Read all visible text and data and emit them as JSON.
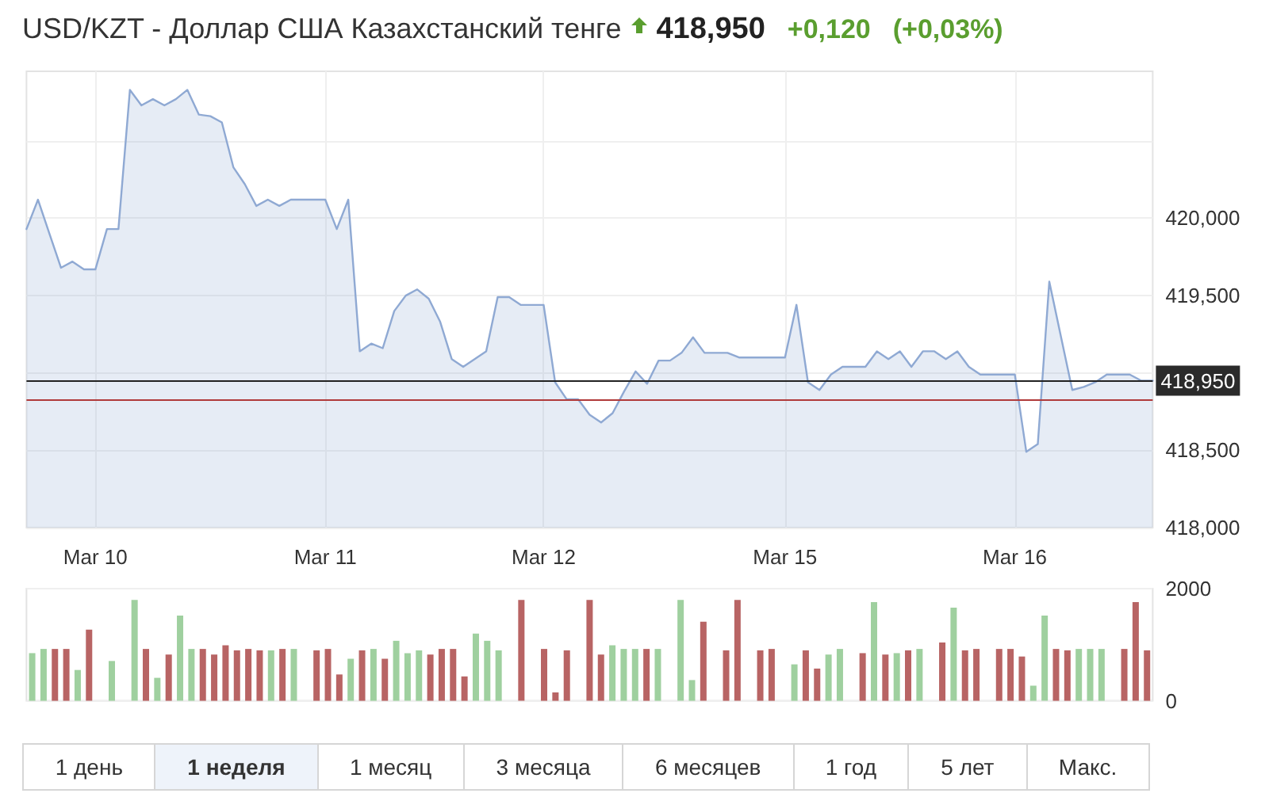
{
  "chart_data": [
    {
      "type": "area",
      "title": "USD/KZT - Доллар США Казахстанский тенге",
      "annotations": [
        "418,950",
        "+0,120",
        "(+0,03%)"
      ],
      "categories": [
        null,
        null,
        null,
        null,
        null,
        null,
        "Mar 10",
        null,
        null,
        null,
        null,
        null,
        null,
        null,
        null,
        null,
        null,
        null,
        null,
        null,
        null,
        null,
        null,
        null,
        null,
        null,
        "Mar 11",
        null,
        null,
        null,
        null,
        null,
        null,
        null,
        null,
        null,
        null,
        null,
        null,
        null,
        null,
        null,
        null,
        null,
        null,
        "Mar 12",
        null,
        null,
        null,
        null,
        null,
        null,
        null,
        null,
        null,
        null,
        null,
        null,
        null,
        null,
        null,
        null,
        null,
        null,
        null,
        null,
        "Mar 15",
        null,
        null,
        null,
        null,
        null,
        null,
        null,
        null,
        null,
        null,
        null,
        null,
        null,
        null,
        null,
        null,
        null,
        null,
        null,
        "Mar 16",
        null,
        null,
        null,
        null,
        null,
        null,
        null,
        null,
        null,
        null,
        null,
        null
      ],
      "series": [
        {
          "color": "#8fa9d3",
          "values": [
            419.93,
            420.12,
            419.9,
            419.68,
            419.72,
            419.67,
            419.67,
            419.93,
            419.93,
            420.83,
            420.73,
            420.77,
            420.73,
            420.77,
            420.83,
            420.67,
            420.66,
            420.62,
            420.33,
            420.22,
            420.08,
            420.12,
            420.08,
            420.12,
            420.12,
            420.12,
            420.12,
            419.93,
            420.12,
            419.14,
            419.19,
            419.16,
            419.4,
            419.5,
            419.54,
            419.48,
            419.33,
            419.09,
            419.04,
            419.09,
            419.14,
            419.49,
            419.49,
            419.44,
            419.44,
            419.44,
            418.94,
            418.83,
            418.83,
            418.73,
            418.68,
            418.74,
            418.88,
            419.01,
            418.93,
            419.08,
            419.08,
            419.13,
            419.23,
            419.13,
            419.13,
            419.13,
            419.1,
            419.1,
            419.1,
            419.1,
            419.1,
            419.44,
            418.94,
            418.89,
            418.99,
            419.04,
            419.04,
            419.04,
            419.14,
            419.09,
            419.14,
            419.04,
            419.14,
            419.14,
            419.09,
            419.14,
            419.04,
            418.99,
            418.99,
            418.99,
            418.99,
            418.49,
            418.54,
            419.59,
            419.24,
            418.89,
            418.91,
            418.94,
            418.99,
            418.99,
            418.99,
            418.95,
            418.95
          ]
        }
      ],
      "ylim": [
        418,
        420.95
      ],
      "yticks": [
        {
          "value": 418,
          "label": "418,000"
        },
        {
          "value": 418.5,
          "label": "418,500"
        },
        {
          "value": 419,
          "label": null
        },
        {
          "value": 419.5,
          "label": "419,500"
        },
        {
          "value": 420,
          "label": "420,000"
        },
        {
          "value": 420.5,
          "label": null
        }
      ],
      "ref_lines": [
        {
          "axis": "y",
          "value": 418.95,
          "label": "418,950",
          "color": "#222222"
        },
        {
          "axis": "y",
          "value": 418.83,
          "color": "#b03a3a"
        }
      ],
      "grid": true
    },
    {
      "type": "bar",
      "annotations": [
        "1 день",
        "1 неделя",
        "1 месяц",
        "3 месяца",
        "6 месяцев",
        "1 год",
        "5 лет",
        "Макс."
      ],
      "categories": [
        null,
        null,
        null,
        null,
        null,
        null,
        null,
        null,
        null,
        null,
        null,
        null,
        null,
        null,
        null,
        null,
        null,
        null,
        null,
        null,
        null,
        null,
        null,
        null,
        null,
        null,
        null,
        null,
        null,
        null,
        null,
        null,
        null,
        null,
        null,
        null,
        null,
        null,
        null,
        null,
        null,
        null,
        null,
        null,
        null,
        null,
        null,
        null,
        null,
        null,
        null,
        null,
        null,
        null,
        null,
        null,
        null,
        null,
        null,
        null,
        null,
        null,
        null,
        null,
        null,
        null,
        null,
        null,
        null,
        null,
        null,
        null,
        null,
        null,
        null,
        null,
        null,
        null,
        null,
        null,
        null,
        null,
        null,
        null,
        null,
        null,
        null,
        null,
        null,
        null,
        null,
        null,
        null,
        null,
        null,
        null,
        null,
        null,
        null
      ],
      "values": [
        850,
        925,
        925,
        925,
        550,
        1270,
        null,
        710,
        null,
        1800,
        925,
        410,
        825,
        1520,
        925,
        925,
        825,
        990,
        900,
        925,
        900,
        900,
        925,
        925,
        null,
        900,
        925,
        470,
        750,
        900,
        925,
        750,
        1070,
        850,
        900,
        825,
        925,
        925,
        435,
        1200,
        1070,
        900,
        null,
        1800,
        null,
        925,
        150,
        900,
        null,
        1800,
        825,
        990,
        925,
        925,
        925,
        925,
        null,
        1800,
        370,
        1410,
        null,
        900,
        1800,
        null,
        900,
        925,
        null,
        650,
        900,
        575,
        825,
        925,
        null,
        850,
        1760,
        825,
        850,
        900,
        925,
        null,
        1040,
        1660,
        900,
        925,
        null,
        925,
        925,
        790,
        270,
        1520,
        925,
        900,
        925,
        925,
        925,
        null,
        925,
        1760,
        900
      ],
      "colors": [
        "#9fd09f",
        "#9fd09f",
        "#b86464",
        "#b86464",
        "#9fd09f",
        "#b86464",
        null,
        "#9fd09f",
        null,
        "#9fd09f",
        "#b86464",
        "#9fd09f",
        "#b86464",
        "#9fd09f",
        "#9fd09f",
        "#b86464",
        "#b86464",
        "#b86464",
        "#b86464",
        "#b86464",
        "#b86464",
        "#9fd09f",
        "#b86464",
        "#9fd09f",
        null,
        "#b86464",
        "#b86464",
        "#b86464",
        "#9fd09f",
        "#b86464",
        "#9fd09f",
        "#b86464",
        "#9fd09f",
        "#9fd09f",
        "#9fd09f",
        "#b86464",
        "#b86464",
        "#b86464",
        "#b86464",
        "#9fd09f",
        "#9fd09f",
        "#9fd09f",
        null,
        "#b86464",
        null,
        "#b86464",
        "#b86464",
        "#b86464",
        null,
        "#b86464",
        "#b86464",
        "#9fd09f",
        "#9fd09f",
        "#9fd09f",
        "#b86464",
        "#9fd09f",
        null,
        "#9fd09f",
        "#9fd09f",
        "#b86464",
        null,
        "#b86464",
        "#b86464",
        null,
        "#b86464",
        "#b86464",
        null,
        "#9fd09f",
        "#b86464",
        "#b86464",
        "#9fd09f",
        "#9fd09f",
        null,
        "#b86464",
        "#9fd09f",
        "#b86464",
        "#9fd09f",
        "#b86464",
        "#9fd09f",
        null,
        "#b86464",
        "#9fd09f",
        "#b86464",
        "#b86464",
        null,
        "#b86464",
        "#b86464",
        "#b86464",
        "#9fd09f",
        "#9fd09f",
        "#b86464",
        "#b86464",
        "#9fd09f",
        "#9fd09f",
        "#9fd09f",
        null,
        "#b86464",
        "#b86464",
        "#b86464"
      ],
      "ylim": [
        0,
        2000
      ],
      "yticks": [
        0,
        2000
      ],
      "tick_labels": "y",
      "grid": true
    }
  ]
}
